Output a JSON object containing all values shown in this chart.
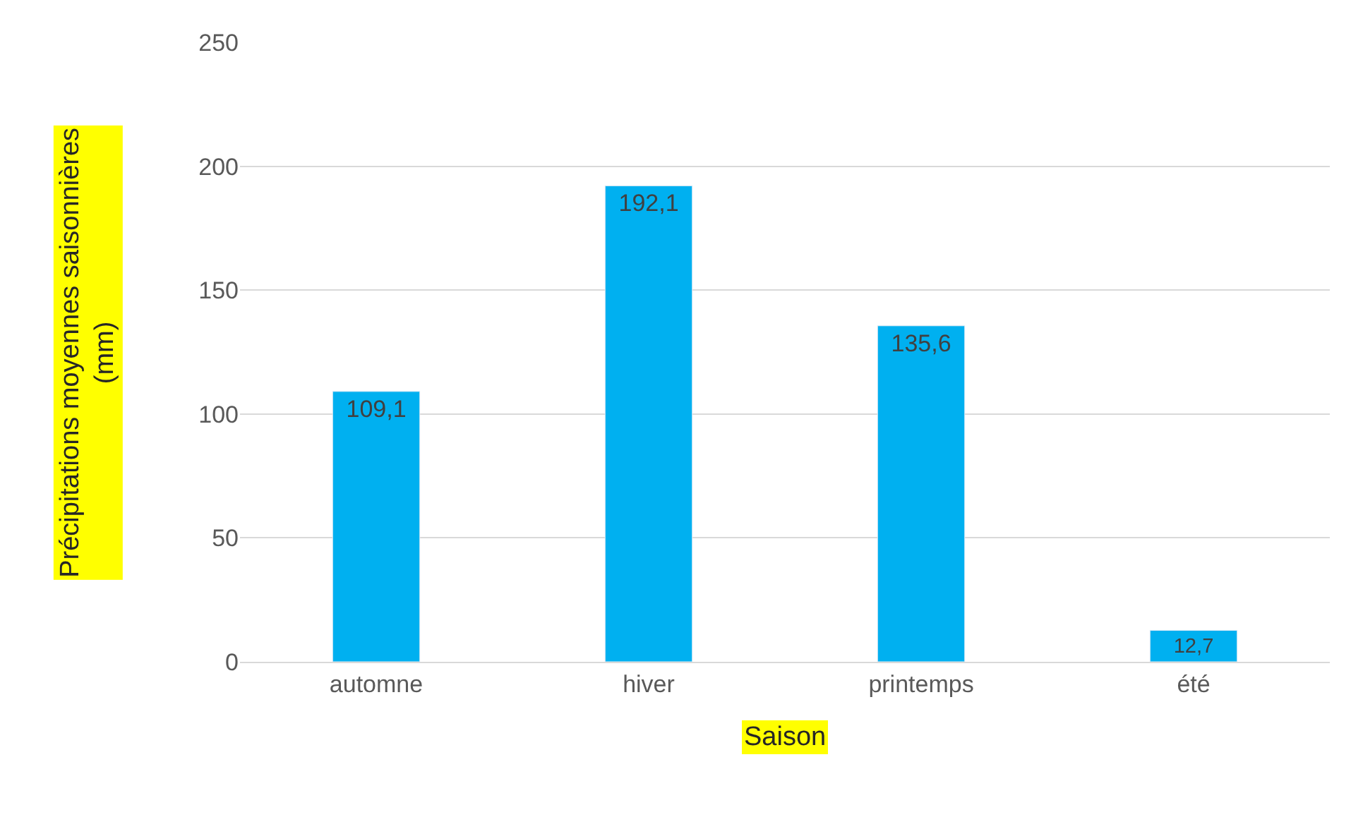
{
  "chart_data": {
    "type": "bar",
    "xlabel": "Saison",
    "ylabel": "Précipitations moyennes saisonnières (mm)",
    "categories": [
      "automne",
      "hiver",
      "printemps",
      "été"
    ],
    "values": [
      109.1,
      192.1,
      135.6,
      12.7
    ],
    "color": "#00b0f0",
    "value_labels": [
      "109,1",
      "192,1",
      "135,6",
      "12,7"
    ],
    "ylim": [
      0,
      250
    ],
    "yticks": [
      0,
      50,
      100,
      150,
      200,
      250
    ],
    "grid": "y",
    "legend": false
  }
}
